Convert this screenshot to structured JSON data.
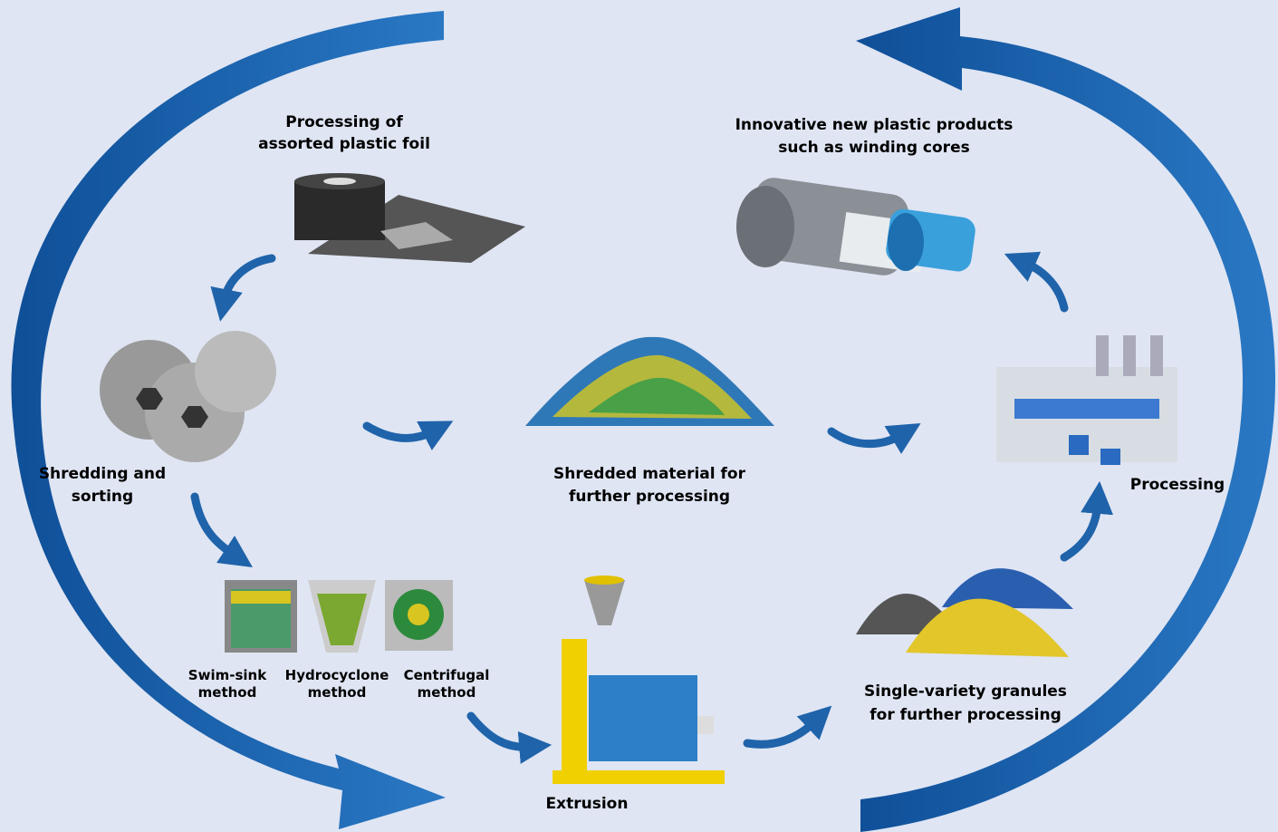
{
  "nodes": [
    {
      "label": [
        "Processing of",
        "assorted plastic foil"
      ]
    },
    {
      "label": [
        "Shredding and",
        "sorting"
      ]
    },
    {
      "label": [
        "Shredded material for",
        "further processing"
      ]
    },
    {
      "methods": [
        [
          "Swim-sink",
          "method"
        ],
        [
          "Hydrocyclone",
          "method"
        ],
        [
          "Centrifugal",
          "method"
        ]
      ]
    },
    {
      "label": [
        "Extrusion"
      ]
    },
    {
      "label": [
        "Single-variety granules",
        "for further processing"
      ]
    },
    {
      "label": [
        "Processing"
      ]
    },
    {
      "label": [
        "Innovative new plastic products",
        "such as winding cores"
      ]
    }
  ]
}
